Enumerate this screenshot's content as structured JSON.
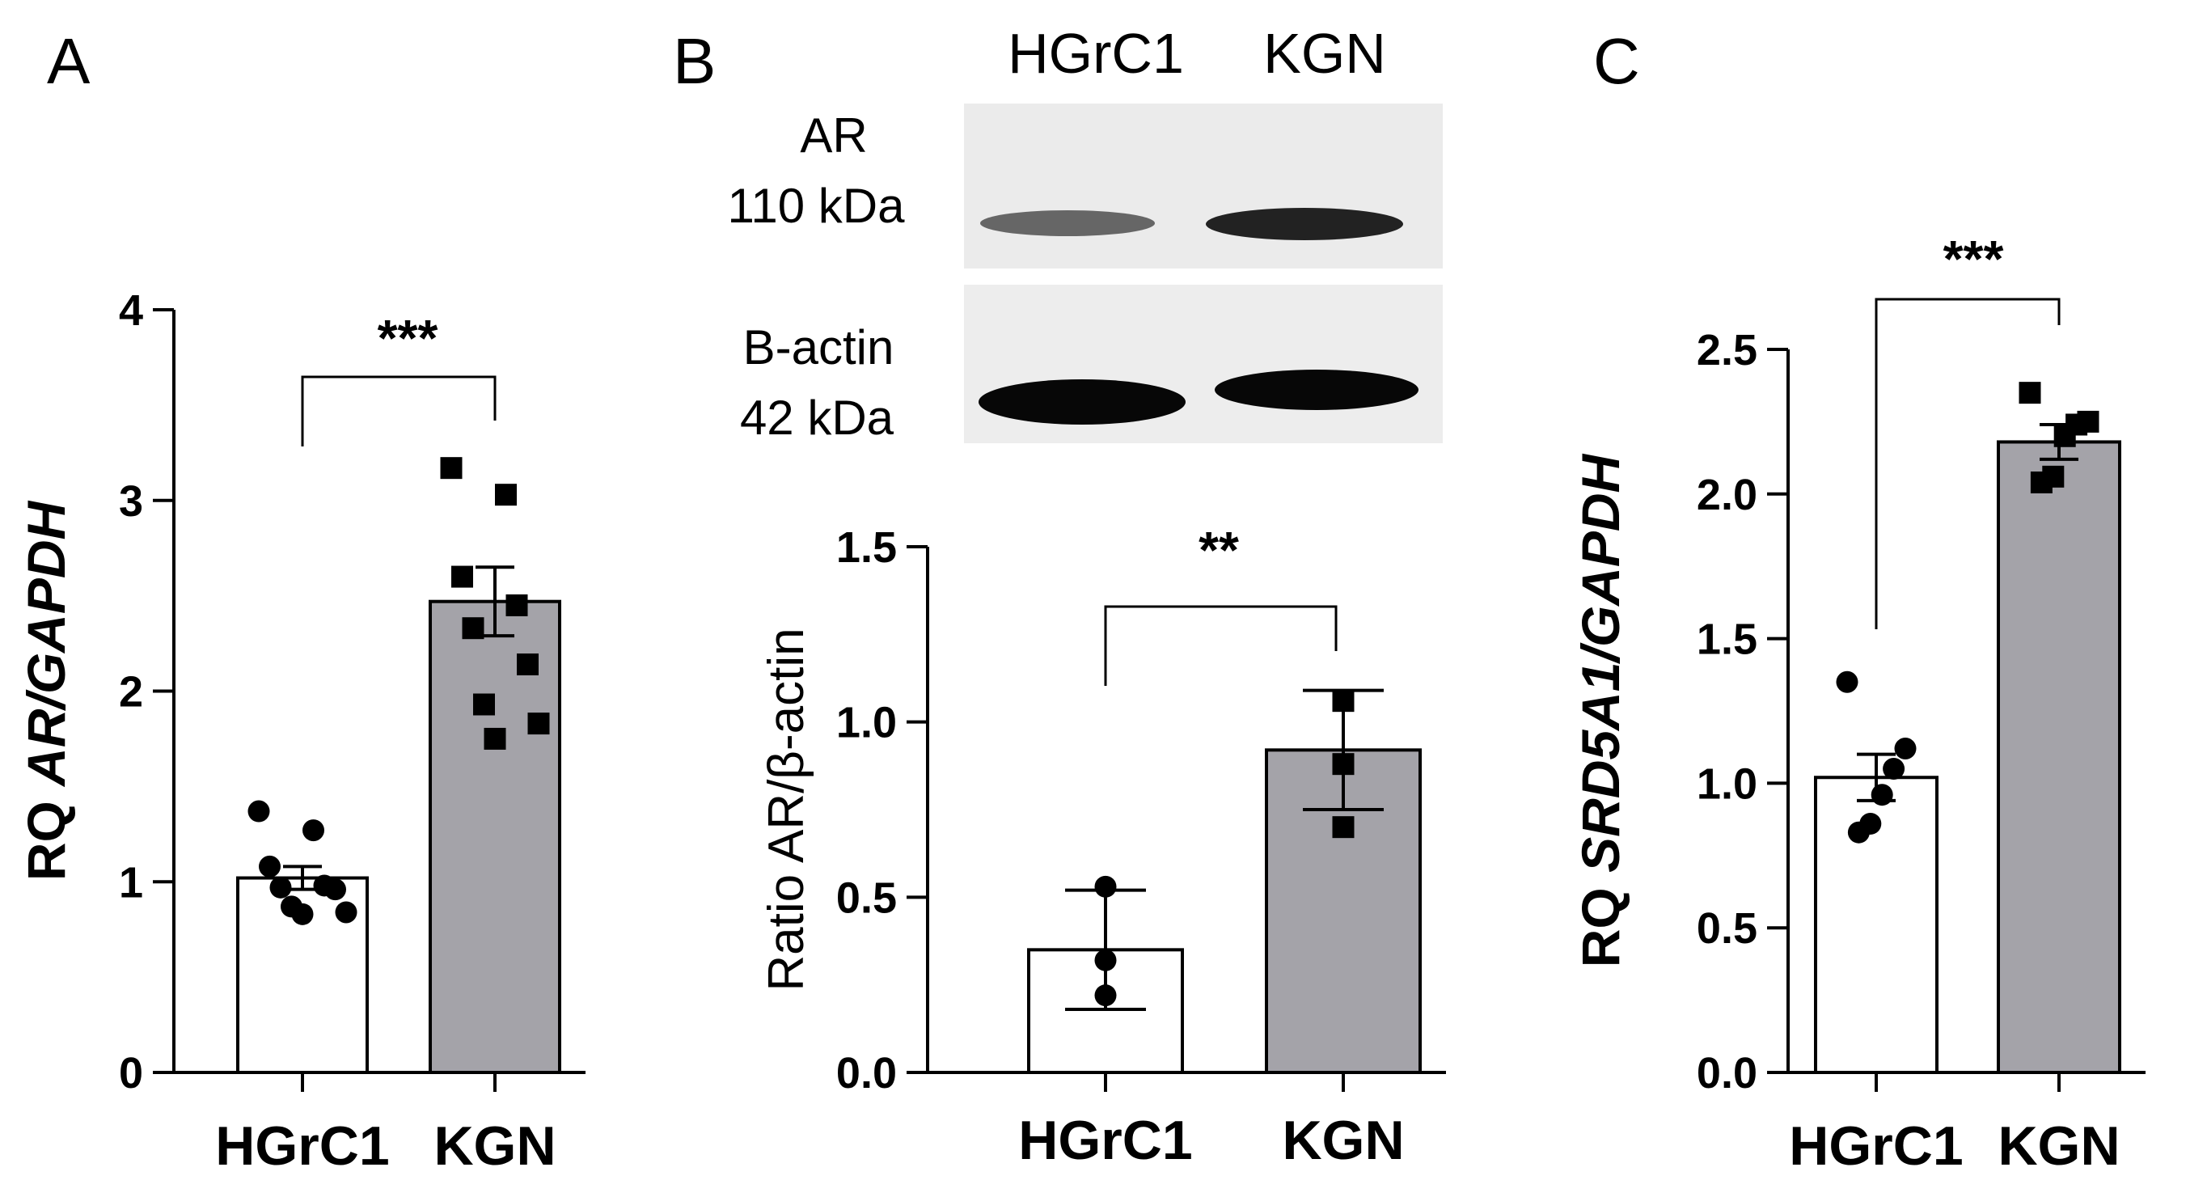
{
  "panels": {
    "a": {
      "letter": "A"
    },
    "b": {
      "letter": "B"
    },
    "c": {
      "letter": "C"
    }
  },
  "blot": {
    "lanes": [
      "HGrC1",
      "KGN"
    ],
    "ar_label": "AR",
    "ar_kda": "110 kDa",
    "actin_label": "B-actin",
    "actin_kda": "42 kDa"
  },
  "chart_data": [
    {
      "panel": "A",
      "type": "bar",
      "categories": [
        "HGrC1",
        "KGN"
      ],
      "values": [
        1.02,
        2.47
      ],
      "error": [
        0.06,
        0.18
      ],
      "points": [
        [
          1.37,
          1.27,
          1.08,
          0.98,
          0.97,
          0.96,
          0.87,
          0.84,
          0.83
        ],
        [
          3.17,
          3.03,
          2.6,
          2.45,
          2.33,
          2.14,
          1.93,
          1.83,
          1.75
        ]
      ],
      "bar_colors": [
        "#ffffff",
        "#a4a3a9"
      ],
      "ylabel_prefix": "RQ ",
      "ylabel_gene": "AR/GAPDH",
      "ylim": [
        0,
        4
      ],
      "yticks": [
        "0",
        "1",
        "2",
        "3",
        "4"
      ],
      "significance": "***"
    },
    {
      "panel": "B",
      "type": "bar",
      "categories": [
        "HGrC1",
        "KGN"
      ],
      "values": [
        0.35,
        0.92
      ],
      "error": [
        0.17,
        0.17
      ],
      "points": [
        [
          0.53,
          0.32,
          0.22
        ],
        [
          1.06,
          0.88,
          0.7
        ]
      ],
      "bar_colors": [
        "#ffffff",
        "#a4a3a9"
      ],
      "ylabel": "Ratio AR/β-actin",
      "ylim": [
        0,
        1.5
      ],
      "yticks": [
        "0.0",
        "0.5",
        "1.0",
        "1.5"
      ],
      "significance": "**"
    },
    {
      "panel": "C",
      "type": "bar",
      "categories": [
        "HGrC1",
        "KGN"
      ],
      "values": [
        1.02,
        2.18
      ],
      "error": [
        0.08,
        0.06
      ],
      "points": [
        [
          1.35,
          1.12,
          1.05,
          0.96,
          0.86,
          0.83
        ],
        [
          2.35,
          2.25,
          2.24,
          2.2,
          2.06,
          2.04
        ]
      ],
      "bar_colors": [
        "#ffffff",
        "#a4a3a9"
      ],
      "ylabel_prefix": "RQ ",
      "ylabel_gene": "SRD5A1/GAPDH",
      "ylim": [
        0,
        2.5
      ],
      "yticks": [
        "0.0",
        "0.5",
        "1.0",
        "1.5",
        "2.0",
        "2.5"
      ],
      "significance": "***"
    }
  ]
}
